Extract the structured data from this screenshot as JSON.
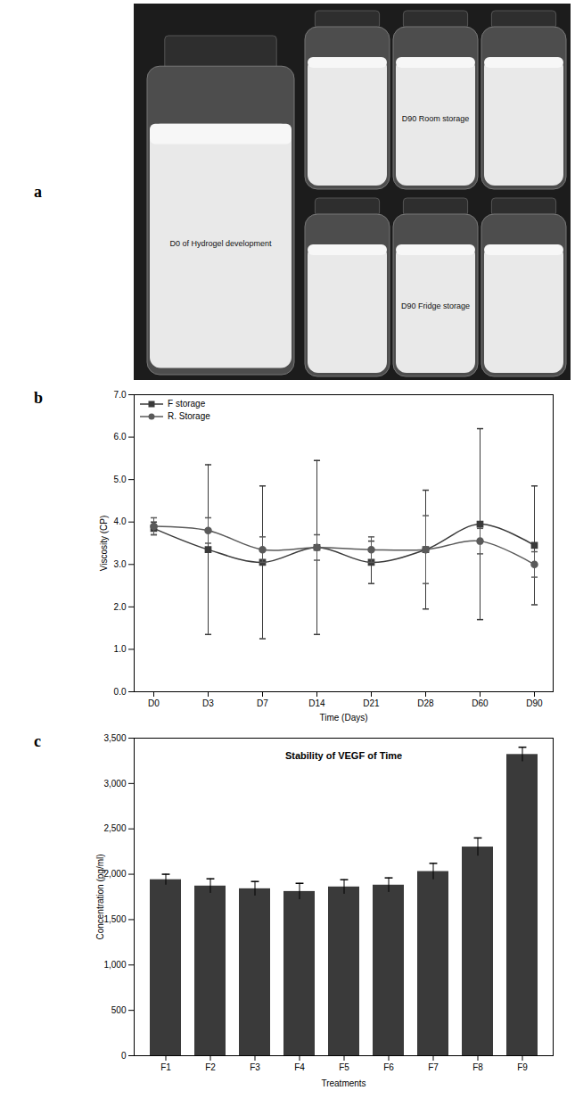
{
  "photo": {
    "panel_label": "a",
    "labels": [
      "D0 of Hydrogel development",
      "D90 Room storage",
      "D90 Fridge storage"
    ]
  },
  "chart_data": [
    {
      "panel_label": "b",
      "type": "line",
      "categories": [
        "D0",
        "D3",
        "D7",
        "D14",
        "D21",
        "D28",
        "D60",
        "D90"
      ],
      "x_label": "Time (Days)",
      "y_label": "Viscosity (CP)",
      "ylim": [
        0,
        7
      ],
      "yticks": [
        0,
        1,
        2,
        3,
        4,
        5,
        6,
        7
      ],
      "grid": false,
      "legend": "top-left",
      "series": [
        {
          "name": "F storage",
          "color": "#3a3a3a",
          "marker": "square",
          "values": [
            3.85,
            3.35,
            3.05,
            3.4,
            3.05,
            3.35,
            3.95,
            3.45
          ],
          "errors": [
            0.15,
            2.0,
            1.8,
            2.05,
            0.5,
            1.4,
            2.25,
            1.4
          ]
        },
        {
          "name": "R. Storage",
          "color": "#5a5a5a",
          "marker": "circle",
          "values": [
            3.9,
            3.8,
            3.35,
            3.4,
            3.35,
            3.35,
            3.55,
            3.0
          ],
          "errors": [
            0.2,
            0.3,
            0.3,
            0.3,
            0.3,
            0.8,
            0.3,
            0.3
          ]
        }
      ]
    },
    {
      "panel_label": "c",
      "type": "bar",
      "title": "Stability of VEGF of Time",
      "categories": [
        "F1",
        "F2",
        "F3",
        "F4",
        "F5",
        "F6",
        "F7",
        "F8",
        "F9"
      ],
      "values": [
        1940,
        1870,
        1840,
        1810,
        1860,
        1880,
        2030,
        2300,
        3320
      ],
      "errors": [
        60,
        80,
        80,
        90,
        80,
        80,
        90,
        100,
        80
      ],
      "x_label": "Treatments",
      "y_label": "Concentration (pg/ml)",
      "color": "#3a3a3a",
      "ylim": [
        0,
        3500
      ],
      "yticks": [
        0,
        500,
        1000,
        1500,
        2000,
        2500,
        3000,
        3500
      ],
      "grid": false
    }
  ]
}
